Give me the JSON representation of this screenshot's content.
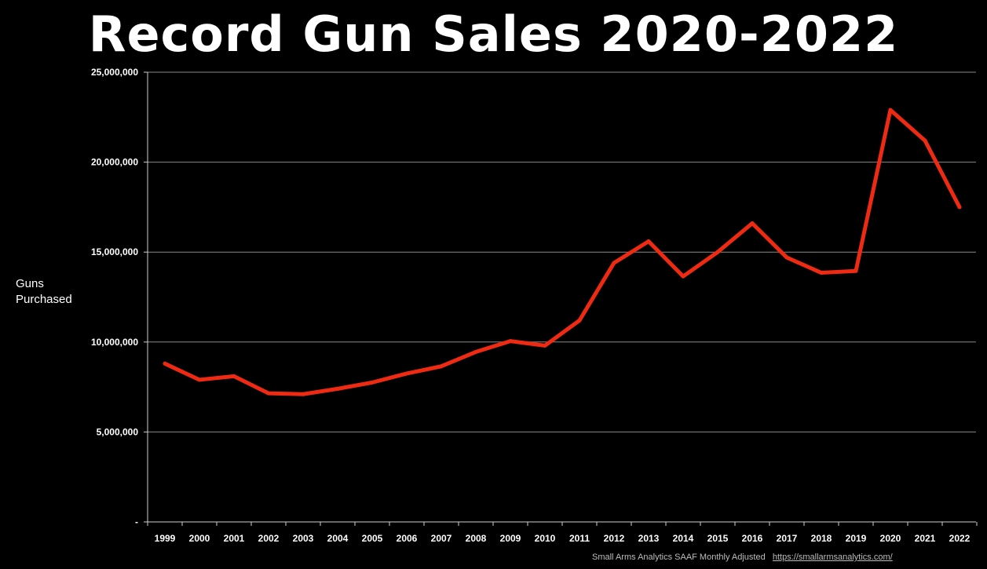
{
  "chart_data": {
    "type": "line",
    "title": "Record Gun Sales 2020-2022",
    "ylabel_lines": [
      "Guns",
      "Purchased"
    ],
    "xlabel": "",
    "categories": [
      "1999",
      "2000",
      "2001",
      "2002",
      "2003",
      "2004",
      "2005",
      "2006",
      "2007",
      "2008",
      "2009",
      "2010",
      "2011",
      "2012",
      "2013",
      "2014",
      "2015",
      "2016",
      "2017",
      "2018",
      "2019",
      "2020",
      "2021",
      "2022"
    ],
    "series": [
      {
        "values": [
          8800000,
          7900000,
          8100000,
          7150000,
          7100000,
          7400000,
          7750000,
          8250000,
          8650000,
          9450000,
          10050000,
          9800000,
          11200000,
          14400000,
          15600000,
          13650000,
          15000000,
          16600000,
          14700000,
          13850000,
          13950000,
          22900000,
          21200000,
          17500000
        ],
        "color": "#ee2a12"
      }
    ],
    "ylim": [
      0,
      25000000
    ],
    "yticks": [
      0,
      5000000,
      10000000,
      15000000,
      20000000,
      25000000
    ],
    "ytick_labels": [
      "-",
      "5,000,000",
      "10,000,000",
      "15,000,000",
      "20,000,000",
      "25,000,000"
    ],
    "grid": true,
    "legend": "none"
  },
  "source": {
    "text": "Small Arms Analytics SAAF Monthly Adjusted",
    "url": "https://smallarmsanalytics.com/"
  },
  "colors": {
    "background": "#000000",
    "grid": "#8a8a8a",
    "axis": "#d0d0d0",
    "line": "#ee2a12",
    "text": "#ffffff"
  }
}
